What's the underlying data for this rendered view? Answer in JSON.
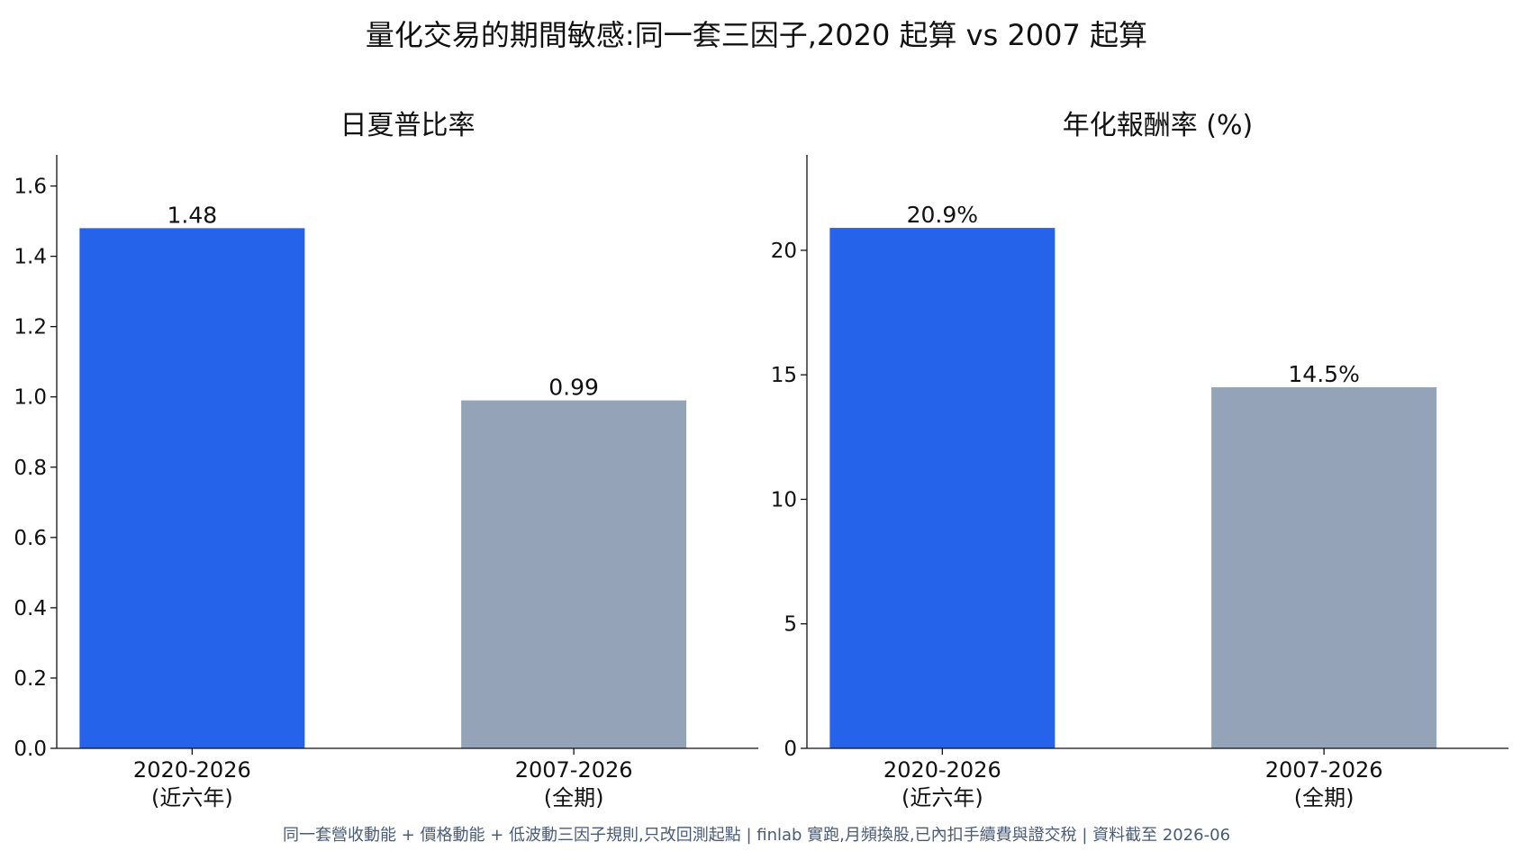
{
  "title": "量化交易的期間敏感:同一套三因子,2020 起算 vs 2007 起算",
  "footnote": "同一套營收動能 + 價格動能 + 低波動三因子規則,只改回測起點 | finlab 實跑,月頻換股,已內扣手續費與證交稅 | 資料截至 2026-06",
  "colors": {
    "recent": "#2563eb",
    "full": "#94a3b8",
    "axis": "#111111"
  },
  "chart_data": [
    {
      "type": "bar",
      "title": "日夏普比率",
      "categories": [
        "2020-2026\n(近六年)",
        "2007-2026\n(全期)"
      ],
      "values": [
        1.48,
        0.99
      ],
      "data_labels": [
        "1.48",
        "0.99"
      ],
      "ylim": [
        0,
        1.75
      ],
      "yticks": [
        0.0,
        0.2,
        0.4,
        0.6,
        0.8,
        1.0,
        1.2,
        1.4,
        1.6
      ],
      "ytick_labels": [
        "0.0",
        "0.2",
        "0.4",
        "0.6",
        "0.8",
        "1.0",
        "1.2",
        "1.4",
        "1.6"
      ],
      "xlabel": "",
      "ylabel": "",
      "grid": false
    },
    {
      "type": "bar",
      "title": "年化報酬率 (%)",
      "categories": [
        "2020-2026\n(近六年)",
        "2007-2026\n(全期)"
      ],
      "values": [
        20.9,
        14.5
      ],
      "data_labels": [
        "20.9%",
        "14.5%"
      ],
      "ylim": [
        0,
        24.7
      ],
      "yticks": [
        0,
        5,
        10,
        15,
        20
      ],
      "ytick_labels": [
        "0",
        "5",
        "10",
        "15",
        "20"
      ],
      "xlabel": "",
      "ylabel": "",
      "grid": false
    }
  ]
}
